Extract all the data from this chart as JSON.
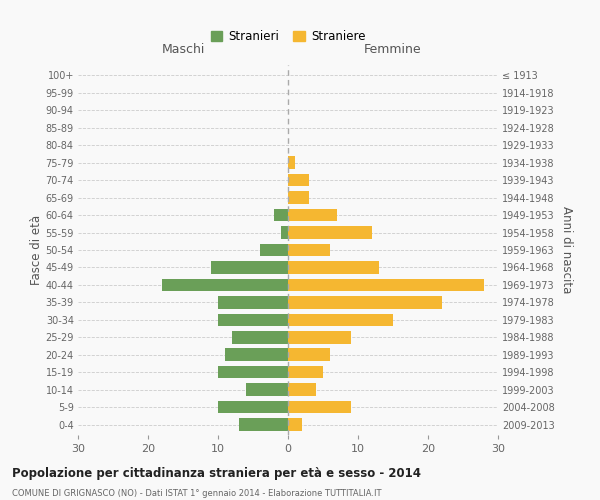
{
  "age_groups": [
    "0-4",
    "5-9",
    "10-14",
    "15-19",
    "20-24",
    "25-29",
    "30-34",
    "35-39",
    "40-44",
    "45-49",
    "50-54",
    "55-59",
    "60-64",
    "65-69",
    "70-74",
    "75-79",
    "80-84",
    "85-89",
    "90-94",
    "95-99",
    "100+"
  ],
  "birth_years": [
    "2009-2013",
    "2004-2008",
    "1999-2003",
    "1994-1998",
    "1989-1993",
    "1984-1988",
    "1979-1983",
    "1974-1978",
    "1969-1973",
    "1964-1968",
    "1959-1963",
    "1954-1958",
    "1949-1953",
    "1944-1948",
    "1939-1943",
    "1934-1938",
    "1929-1933",
    "1924-1928",
    "1919-1923",
    "1914-1918",
    "≤ 1913"
  ],
  "maschi": [
    7,
    10,
    6,
    10,
    9,
    8,
    10,
    10,
    18,
    11,
    4,
    1,
    2,
    0,
    0,
    0,
    0,
    0,
    0,
    0,
    0
  ],
  "femmine": [
    2,
    9,
    4,
    5,
    6,
    9,
    15,
    22,
    28,
    13,
    6,
    12,
    7,
    3,
    3,
    1,
    0,
    0,
    0,
    0,
    0
  ],
  "male_color": "#6a9f58",
  "female_color": "#f5b731",
  "background_color": "#f9f9f9",
  "grid_color": "#cccccc",
  "title": "Popolazione per cittadinanza straniera per età e sesso - 2014",
  "subtitle": "COMUNE DI GRIGNASCO (NO) - Dati ISTAT 1° gennaio 2014 - Elaborazione TUTTITALIA.IT",
  "xlabel_left": "Maschi",
  "xlabel_right": "Femmine",
  "ylabel_left": "Fasce di età",
  "ylabel_right": "Anni di nascita",
  "legend_male": "Stranieri",
  "legend_female": "Straniere",
  "xlim": 30,
  "bar_height": 0.72,
  "center_line_color": "#aaaaaa"
}
